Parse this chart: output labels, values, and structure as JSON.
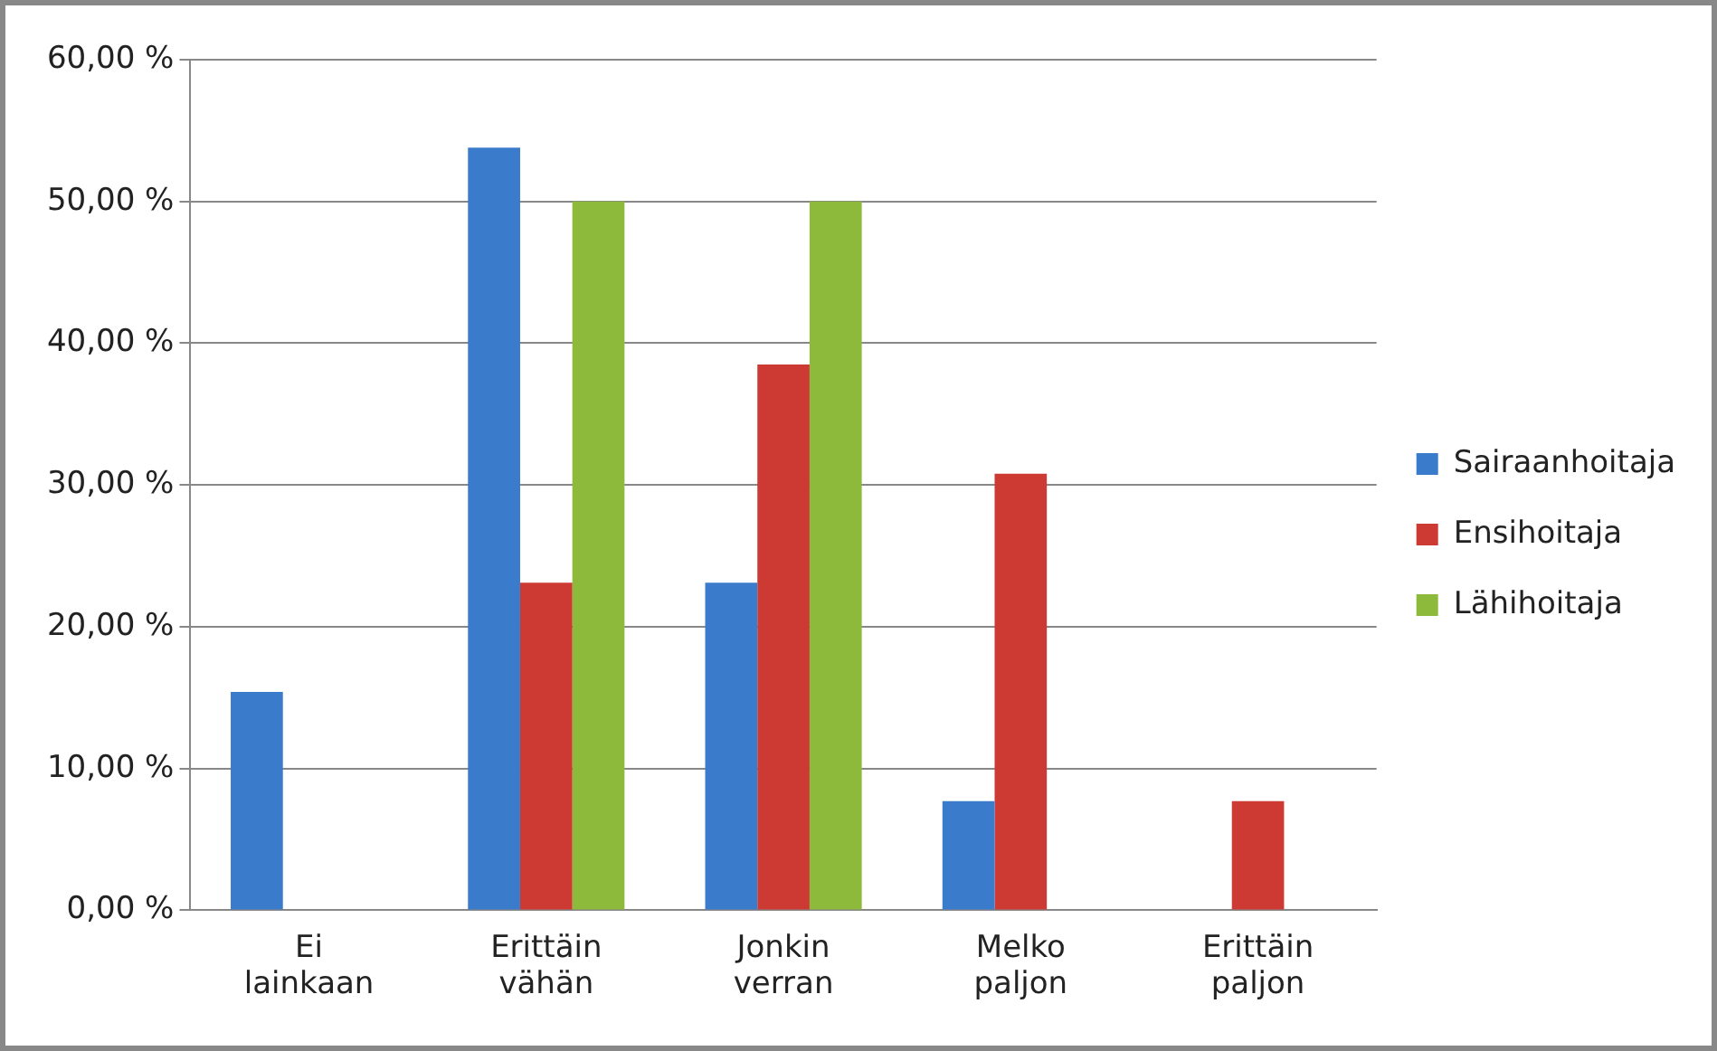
{
  "chart_data": {
    "type": "bar",
    "categories": [
      "Ei lainkaan",
      "Erittäin vähän",
      "Jonkin verran",
      "Melko paljon",
      "Erittäin paljon"
    ],
    "series": [
      {
        "name": "Sairaanhoitaja",
        "color": "#3a7bcc",
        "values": [
          15.4,
          53.8,
          23.1,
          7.7,
          0
        ]
      },
      {
        "name": "Ensihoitaja",
        "color": "#cc3a33",
        "values": [
          0,
          23.1,
          38.5,
          30.8,
          7.7
        ]
      },
      {
        "name": "Lähihoitaja",
        "color": "#8dba3a",
        "values": [
          0,
          50,
          50,
          0,
          0
        ]
      }
    ],
    "ylim": [
      0,
      60
    ],
    "yticks": [
      {
        "value": 0,
        "label": "0,00 %"
      },
      {
        "value": 10,
        "label": "10,00 %"
      },
      {
        "value": 20,
        "label": "20,00 %"
      },
      {
        "value": 30,
        "label": "30,00 %"
      },
      {
        "value": 40,
        "label": "40,00 %"
      },
      {
        "value": 50,
        "label": "50,00 %"
      },
      {
        "value": 60,
        "label": "60,00 %"
      }
    ],
    "grid": "y",
    "legend": "right"
  }
}
